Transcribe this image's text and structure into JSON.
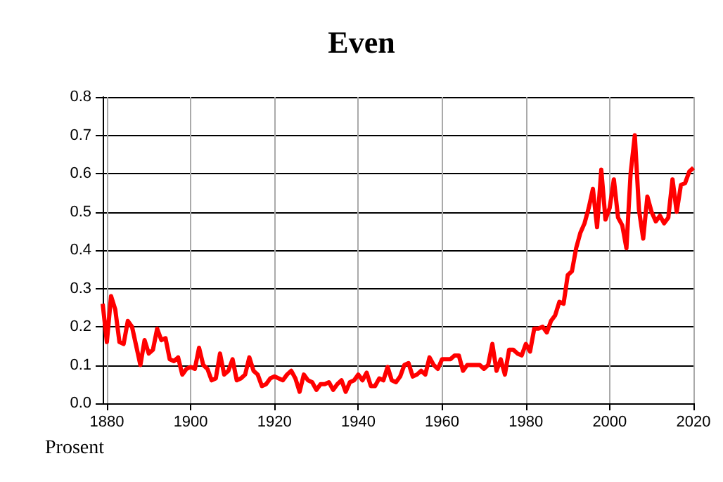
{
  "chart_data": {
    "type": "line",
    "title": "Even",
    "ylabel": "Prosent",
    "x": [
      1879,
      1880,
      1881,
      1882,
      1883,
      1884,
      1885,
      1886,
      1887,
      1888,
      1889,
      1890,
      1891,
      1892,
      1893,
      1894,
      1895,
      1896,
      1897,
      1898,
      1899,
      1900,
      1901,
      1902,
      1903,
      1904,
      1905,
      1906,
      1907,
      1908,
      1909,
      1910,
      1911,
      1912,
      1913,
      1914,
      1915,
      1916,
      1917,
      1918,
      1919,
      1920,
      1921,
      1922,
      1923,
      1924,
      1925,
      1926,
      1927,
      1928,
      1929,
      1930,
      1931,
      1932,
      1933,
      1934,
      1935,
      1936,
      1937,
      1938,
      1939,
      1940,
      1941,
      1942,
      1943,
      1944,
      1945,
      1946,
      1947,
      1948,
      1949,
      1950,
      1951,
      1952,
      1953,
      1954,
      1955,
      1956,
      1957,
      1958,
      1959,
      1960,
      1961,
      1962,
      1963,
      1964,
      1965,
      1966,
      1967,
      1968,
      1969,
      1970,
      1971,
      1972,
      1973,
      1974,
      1975,
      1976,
      1977,
      1978,
      1979,
      1980,
      1981,
      1982,
      1983,
      1984,
      1985,
      1986,
      1987,
      1988,
      1989,
      1990,
      1991,
      1992,
      1993,
      1994,
      1995,
      1996,
      1997,
      1998,
      1999,
      2000,
      2001,
      2002,
      2003,
      2004,
      2005,
      2006,
      2007,
      2008,
      2009,
      2010,
      2011,
      2012,
      2013,
      2014,
      2015,
      2016,
      2017,
      2018,
      2019,
      2020
    ],
    "series": [
      {
        "color": "#ff0000",
        "values": [
          0.26,
          0.16,
          0.28,
          0.245,
          0.16,
          0.155,
          0.215,
          0.2,
          0.15,
          0.1,
          0.165,
          0.13,
          0.14,
          0.195,
          0.165,
          0.17,
          0.115,
          0.11,
          0.12,
          0.075,
          0.09,
          0.095,
          0.09,
          0.145,
          0.1,
          0.09,
          0.06,
          0.065,
          0.13,
          0.075,
          0.085,
          0.115,
          0.06,
          0.065,
          0.075,
          0.12,
          0.085,
          0.075,
          0.045,
          0.05,
          0.065,
          0.07,
          0.065,
          0.06,
          0.075,
          0.085,
          0.065,
          0.03,
          0.075,
          0.06,
          0.055,
          0.035,
          0.05,
          0.05,
          0.055,
          0.035,
          0.05,
          0.06,
          0.03,
          0.055,
          0.06,
          0.075,
          0.06,
          0.08,
          0.045,
          0.045,
          0.065,
          0.06,
          0.095,
          0.06,
          0.055,
          0.07,
          0.1,
          0.105,
          0.07,
          0.075,
          0.085,
          0.075,
          0.12,
          0.1,
          0.09,
          0.115,
          0.115,
          0.115,
          0.125,
          0.125,
          0.085,
          0.1,
          0.1,
          0.1,
          0.1,
          0.09,
          0.1,
          0.155,
          0.085,
          0.115,
          0.075,
          0.14,
          0.14,
          0.13,
          0.125,
          0.155,
          0.135,
          0.195,
          0.195,
          0.2,
          0.185,
          0.215,
          0.23,
          0.265,
          0.26,
          0.335,
          0.345,
          0.405,
          0.445,
          0.47,
          0.51,
          0.56,
          0.46,
          0.61,
          0.48,
          0.51,
          0.585,
          0.485,
          0.465,
          0.405,
          0.6,
          0.7,
          0.505,
          0.43,
          0.54,
          0.5,
          0.475,
          0.49,
          0.47,
          0.485,
          0.585,
          0.5,
          0.57,
          0.575,
          0.605,
          0.615
        ]
      }
    ],
    "xlim": [
      1879,
      2020
    ],
    "xticks": [
      1880,
      1900,
      1920,
      1940,
      1960,
      1980,
      2000,
      2020
    ],
    "ylim": [
      0,
      0.8
    ],
    "yticks": [
      {
        "value": 0,
        "label": "0.0"
      },
      0.1,
      0.2,
      0.3,
      0.4,
      0.5,
      0.6,
      0.7,
      0.8
    ],
    "grid": true,
    "marker": "none",
    "line_style": "solid"
  }
}
